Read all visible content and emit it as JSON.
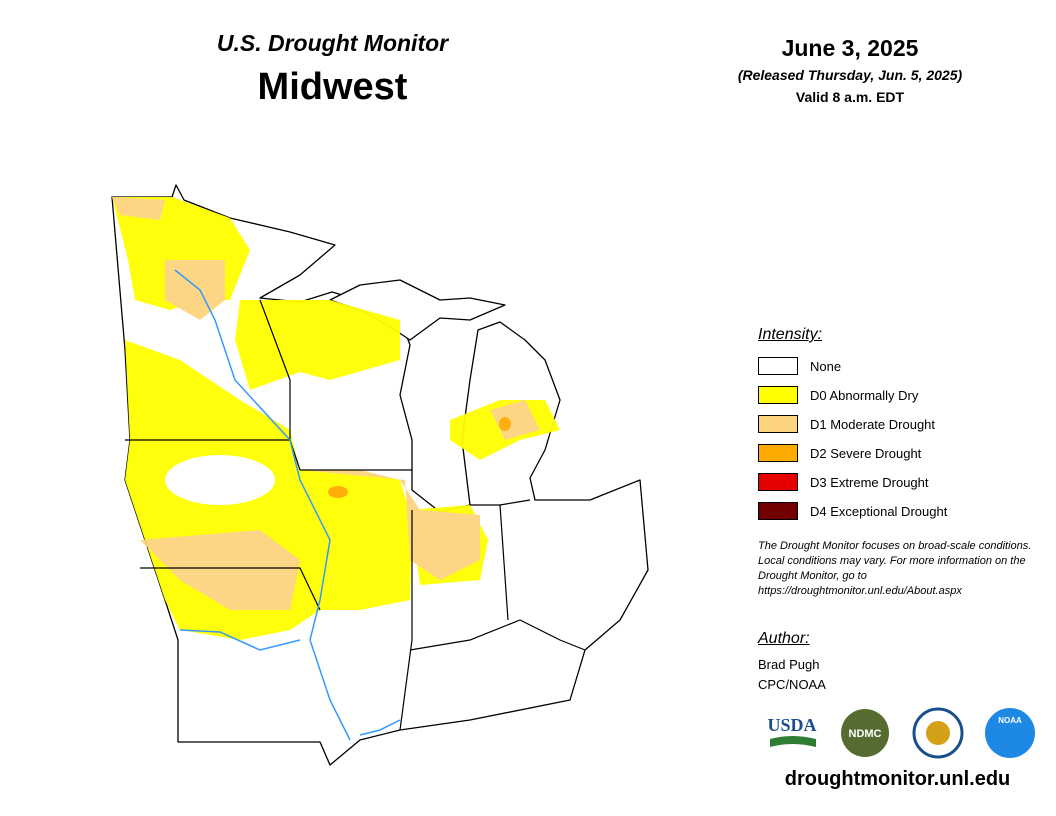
{
  "header": {
    "subtitle": "U.S. Drought Monitor",
    "title": "Midwest",
    "date": "June 3, 2025",
    "released": "(Released Thursday, Jun. 5, 2025)",
    "valid": "Valid 8 a.m. EDT"
  },
  "legend": {
    "title": "Intensity:",
    "items": [
      {
        "label": "None",
        "color": "#ffffff"
      },
      {
        "label": "D0 Abnormally Dry",
        "color": "#ffff00"
      },
      {
        "label": "D1 Moderate Drought",
        "color": "#fcd37f"
      },
      {
        "label": "D2 Severe Drought",
        "color": "#ffaa00"
      },
      {
        "label": "D3 Extreme Drought",
        "color": "#e60000"
      },
      {
        "label": "D4 Exceptional Drought",
        "color": "#730000"
      }
    ]
  },
  "note": "The Drought Monitor focuses on broad-scale conditions. Local conditions may vary. For more information on the Drought Monitor, go to https://droughtmonitor.unl.edu/About.aspx",
  "author": {
    "title": "Author:",
    "name": "Brad Pugh",
    "org": "CPC/NOAA"
  },
  "logos": [
    "USDA",
    "NDMC",
    "NOAA"
  ],
  "url": "droughtmonitor.unl.edu"
}
